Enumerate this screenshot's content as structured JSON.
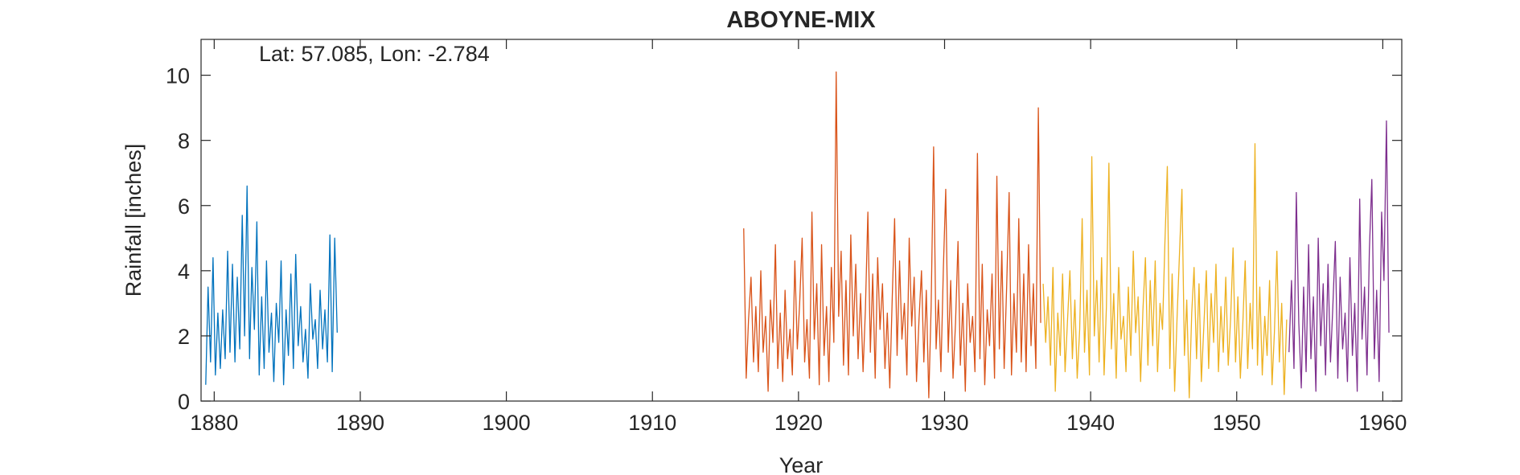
{
  "chart_data": {
    "type": "line",
    "title": "ABOYNE-MIX",
    "annotation": "Lat: 57.085, Lon: -2.784",
    "x_label": "Year",
    "y_label": "Rainfall [inches]",
    "xlim": [
      1879.1,
      1961.3
    ],
    "xticks": [
      1880,
      1890,
      1900,
      1910,
      1920,
      1930,
      1940,
      1950,
      1960
    ],
    "ylim": [
      0,
      11.1
    ],
    "yticks": [
      0,
      2,
      4,
      6,
      8,
      10
    ],
    "grid": false,
    "series": [
      {
        "color": "#0072bd",
        "x": [
          1879.42,
          1879.58,
          1879.75,
          1879.92,
          1880.08,
          1880.25,
          1880.42,
          1880.58,
          1880.75,
          1880.92,
          1881.08,
          1881.25,
          1881.42,
          1881.58,
          1881.75,
          1881.92,
          1882.08,
          1882.25,
          1882.42,
          1882.58,
          1882.75,
          1882.92,
          1883.08,
          1883.25,
          1883.42,
          1883.58,
          1883.75,
          1883.92,
          1884.08,
          1884.25,
          1884.42,
          1884.58,
          1884.75,
          1884.92,
          1885.08,
          1885.25,
          1885.42,
          1885.58,
          1885.75,
          1885.92,
          1886.08,
          1886.25,
          1886.42,
          1886.58,
          1886.75,
          1886.92,
          1887.08,
          1887.25,
          1887.42,
          1887.58,
          1887.75,
          1887.92,
          1888.08,
          1888.25,
          1888.42
        ],
        "values": [
          0.5,
          3.5,
          1.2,
          4.4,
          0.8,
          2.7,
          1.0,
          2.8,
          1.3,
          4.6,
          1.5,
          4.2,
          1.2,
          3.8,
          1.6,
          5.7,
          2.0,
          6.6,
          1.3,
          4.1,
          2.2,
          5.5,
          0.8,
          3.2,
          1.0,
          4.3,
          1.5,
          2.7,
          0.6,
          3.0,
          1.8,
          4.3,
          0.5,
          2.8,
          1.4,
          3.9,
          1.0,
          4.5,
          1.7,
          2.9,
          1.2,
          2.2,
          0.7,
          3.6,
          1.9,
          2.5,
          1.0,
          3.4,
          1.6,
          2.8,
          1.2,
          5.1,
          0.9,
          5.0,
          2.1
        ]
      },
      {
        "color": "#d95319",
        "x": [
          1916.25,
          1916.42,
          1916.58,
          1916.75,
          1916.92,
          1917.08,
          1917.25,
          1917.42,
          1917.58,
          1917.75,
          1917.92,
          1918.08,
          1918.25,
          1918.42,
          1918.58,
          1918.75,
          1918.92,
          1919.08,
          1919.25,
          1919.42,
          1919.58,
          1919.75,
          1919.92,
          1920.08,
          1920.25,
          1920.42,
          1920.58,
          1920.75,
          1920.92,
          1921.08,
          1921.25,
          1921.42,
          1921.58,
          1921.75,
          1921.92,
          1922.08,
          1922.25,
          1922.42,
          1922.58,
          1922.75,
          1922.92,
          1923.08,
          1923.25,
          1923.42,
          1923.58,
          1923.75,
          1923.92,
          1924.08,
          1924.25,
          1924.42,
          1924.58,
          1924.75,
          1924.92,
          1925.08,
          1925.25,
          1925.42,
          1925.58,
          1925.75,
          1925.92,
          1926.08,
          1926.25,
          1926.42,
          1926.58,
          1926.75,
          1926.92,
          1927.08,
          1927.25,
          1927.42,
          1927.58,
          1927.75,
          1927.92,
          1928.08,
          1928.25,
          1928.42,
          1928.58,
          1928.75,
          1928.92,
          1929.08,
          1929.25,
          1929.42,
          1929.58,
          1929.75,
          1929.92,
          1930.08,
          1930.25,
          1930.42,
          1930.58,
          1930.75,
          1930.92,
          1931.08,
          1931.25,
          1931.42,
          1931.58,
          1931.75,
          1931.92,
          1932.08,
          1932.25,
          1932.42,
          1932.58,
          1932.75,
          1932.92,
          1933.08,
          1933.25,
          1933.42,
          1933.58,
          1933.75,
          1933.92,
          1934.08,
          1934.25,
          1934.42,
          1934.58,
          1934.75,
          1934.92,
          1935.08,
          1935.25,
          1935.42,
          1935.58,
          1935.75,
          1935.92,
          1936.08,
          1936.25,
          1936.42,
          1936.58
        ],
        "values": [
          5.3,
          0.7,
          2.5,
          3.8,
          1.2,
          2.9,
          0.9,
          4.0,
          1.5,
          2.6,
          0.3,
          3.1,
          1.8,
          4.8,
          1.0,
          2.7,
          0.6,
          3.4,
          1.3,
          2.2,
          0.8,
          4.3,
          1.6,
          3.0,
          5.0,
          1.2,
          2.5,
          0.7,
          5.8,
          1.9,
          3.6,
          0.5,
          4.8,
          1.4,
          2.9,
          0.6,
          4.1,
          1.8,
          10.1,
          2.6,
          4.6,
          1.1,
          3.7,
          0.8,
          5.1,
          2.0,
          4.2,
          1.3,
          3.3,
          0.9,
          2.8,
          5.8,
          1.5,
          3.9,
          0.7,
          4.4,
          2.2,
          3.6,
          1.0,
          2.7,
          0.4,
          3.2,
          5.6,
          1.4,
          4.3,
          1.9,
          3.0,
          0.8,
          5.0,
          2.3,
          3.8,
          0.6,
          2.5,
          4.0,
          1.2,
          3.4,
          0.1,
          2.9,
          7.8,
          1.6,
          3.1,
          0.9,
          4.1,
          6.5,
          1.5,
          3.7,
          0.7,
          2.4,
          4.9,
          1.1,
          3.0,
          0.3,
          3.6,
          1.8,
          2.6,
          0.9,
          7.6,
          1.3,
          4.2,
          0.5,
          2.8,
          1.7,
          3.9,
          0.7,
          6.9,
          1.6,
          4.6,
          1.0,
          3.5,
          6.4,
          0.8,
          3.3,
          1.5,
          5.6,
          1.2,
          3.9,
          0.9,
          4.8,
          1.7,
          3.6,
          1.0,
          9.0,
          2.4
        ]
      },
      {
        "color": "#edb120",
        "x": [
          1936.75,
          1936.92,
          1937.08,
          1937.25,
          1937.42,
          1937.58,
          1937.75,
          1937.92,
          1938.08,
          1938.25,
          1938.42,
          1938.58,
          1938.75,
          1938.92,
          1939.08,
          1939.25,
          1939.42,
          1939.58,
          1939.75,
          1939.92,
          1940.08,
          1940.25,
          1940.42,
          1940.58,
          1940.75,
          1940.92,
          1941.08,
          1941.25,
          1941.42,
          1941.58,
          1941.75,
          1941.92,
          1942.08,
          1942.25,
          1942.42,
          1942.58,
          1942.75,
          1942.92,
          1943.08,
          1943.25,
          1943.42,
          1943.58,
          1943.75,
          1943.92,
          1944.08,
          1944.25,
          1944.42,
          1944.58,
          1944.75,
          1944.92,
          1945.08,
          1945.25,
          1945.42,
          1945.58,
          1945.75,
          1945.92,
          1946.08,
          1946.25,
          1946.42,
          1946.58,
          1946.75,
          1946.92,
          1947.08,
          1947.25,
          1947.42,
          1947.58,
          1947.75,
          1947.92,
          1948.08,
          1948.25,
          1948.42,
          1948.58,
          1948.75,
          1948.92,
          1949.08,
          1949.25,
          1949.42,
          1949.58,
          1949.75,
          1949.92,
          1950.08,
          1950.25,
          1950.42,
          1950.58,
          1950.75,
          1950.92,
          1951.08,
          1951.25,
          1951.42,
          1951.58,
          1951.75,
          1951.92,
          1952.08,
          1952.25,
          1952.42,
          1952.58,
          1952.75,
          1952.92,
          1953.08,
          1953.25,
          1953.42
        ],
        "values": [
          3.6,
          1.8,
          3.2,
          1.1,
          4.1,
          0.3,
          2.7,
          1.4,
          3.9,
          0.9,
          2.5,
          4.0,
          1.3,
          3.1,
          0.7,
          2.2,
          5.6,
          1.5,
          3.4,
          0.8,
          7.5,
          2.0,
          3.7,
          1.2,
          4.4,
          0.8,
          2.9,
          7.3,
          1.6,
          3.3,
          0.7,
          4.1,
          1.9,
          2.6,
          0.9,
          3.5,
          1.4,
          4.6,
          2.1,
          3.2,
          0.6,
          2.8,
          4.4,
          1.1,
          3.7,
          1.7,
          4.3,
          0.9,
          3.0,
          2.2,
          4.8,
          7.2,
          1.0,
          3.9,
          0.3,
          2.6,
          4.5,
          6.5,
          1.4,
          3.1,
          0.1,
          2.7,
          4.1,
          1.3,
          3.6,
          0.6,
          2.3,
          4.0,
          1.0,
          3.3,
          1.8,
          4.2,
          0.9,
          2.9,
          1.5,
          3.8,
          1.1,
          2.5,
          4.7,
          1.2,
          3.2,
          0.7,
          2.4,
          4.3,
          1.0,
          3.0,
          1.6,
          7.9,
          1.1,
          3.5,
          0.8,
          2.6,
          1.4,
          3.7,
          0.5,
          2.1,
          4.6,
          1.2,
          3.0,
          0.2,
          2.5
        ]
      },
      {
        "color": "#7e2f8e",
        "x": [
          1953.58,
          1953.75,
          1953.92,
          1954.08,
          1954.25,
          1954.42,
          1954.58,
          1954.75,
          1954.92,
          1955.08,
          1955.25,
          1955.42,
          1955.58,
          1955.75,
          1955.92,
          1956.08,
          1956.25,
          1956.42,
          1956.58,
          1956.75,
          1956.92,
          1957.08,
          1957.25,
          1957.42,
          1957.58,
          1957.75,
          1957.92,
          1958.08,
          1958.25,
          1958.42,
          1958.58,
          1958.75,
          1958.92,
          1959.08,
          1959.25,
          1959.42,
          1959.58,
          1959.75,
          1959.92,
          1960.08,
          1960.25,
          1960.42
        ],
        "values": [
          1.5,
          3.7,
          1.0,
          6.4,
          2.4,
          0.4,
          3.5,
          0.9,
          4.8,
          1.3,
          3.2,
          0.3,
          5.0,
          1.7,
          3.6,
          0.8,
          4.2,
          1.2,
          2.9,
          4.9,
          0.7,
          3.8,
          1.6,
          2.7,
          0.6,
          4.4,
          1.4,
          3.0,
          0.3,
          6.2,
          1.9,
          3.5,
          0.8,
          4.6,
          6.8,
          1.3,
          3.4,
          0.6,
          5.8,
          3.7,
          8.6,
          2.1
        ]
      }
    ]
  }
}
